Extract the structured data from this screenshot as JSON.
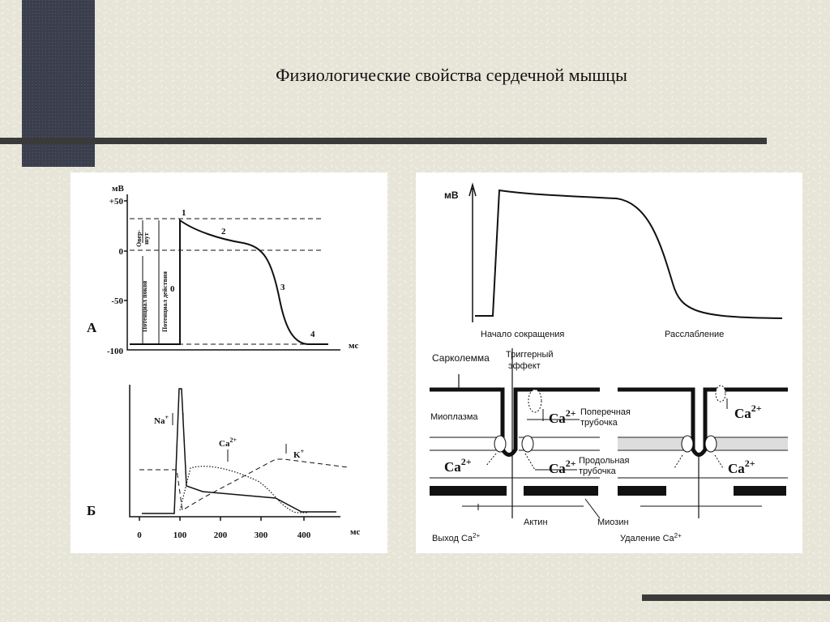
{
  "title": "Физиологические свойства сердечной мышцы",
  "panel_a": {
    "label": "А",
    "y_unit": "мВ",
    "y_ticks": [
      "+50",
      "0",
      "-50",
      "-100"
    ],
    "x_unit": "мс",
    "phases": [
      "0",
      "1",
      "2",
      "3",
      "4"
    ],
    "overshoot": [
      "Овер-",
      "шут"
    ],
    "resting": "Потенциал покоя",
    "action": "Потенциал действия"
  },
  "panel_b": {
    "label": "Б",
    "x_ticks": [
      "0",
      "100",
      "200",
      "300",
      "400"
    ],
    "x_unit": "мс",
    "na": {
      "base": "Na",
      "sup": "+"
    },
    "ca": {
      "base": "Ca",
      "sup": "2+"
    },
    "k": {
      "base": "K",
      "sup": "+"
    }
  },
  "panel_right": {
    "y_unit": "мВ",
    "start": "Начало сокращения",
    "relax": "Расслабление",
    "sarcolemma": "Сарколемма",
    "trigger": [
      "Триггерный",
      "эффект"
    ],
    "myoplasm": "Миоплазма",
    "t_tubule": [
      "Поперечная",
      "трубочка"
    ],
    "l_tubule": [
      "Продольная",
      "трубочка"
    ],
    "ca": {
      "base": "Ca",
      "sup": "2+"
    },
    "actin": "Актин",
    "myosin": "Миозин",
    "exit": {
      "base": "Выход Ca",
      "sup": "2+"
    },
    "removal": {
      "base": "Удаление Ca",
      "sup": "2+"
    }
  }
}
